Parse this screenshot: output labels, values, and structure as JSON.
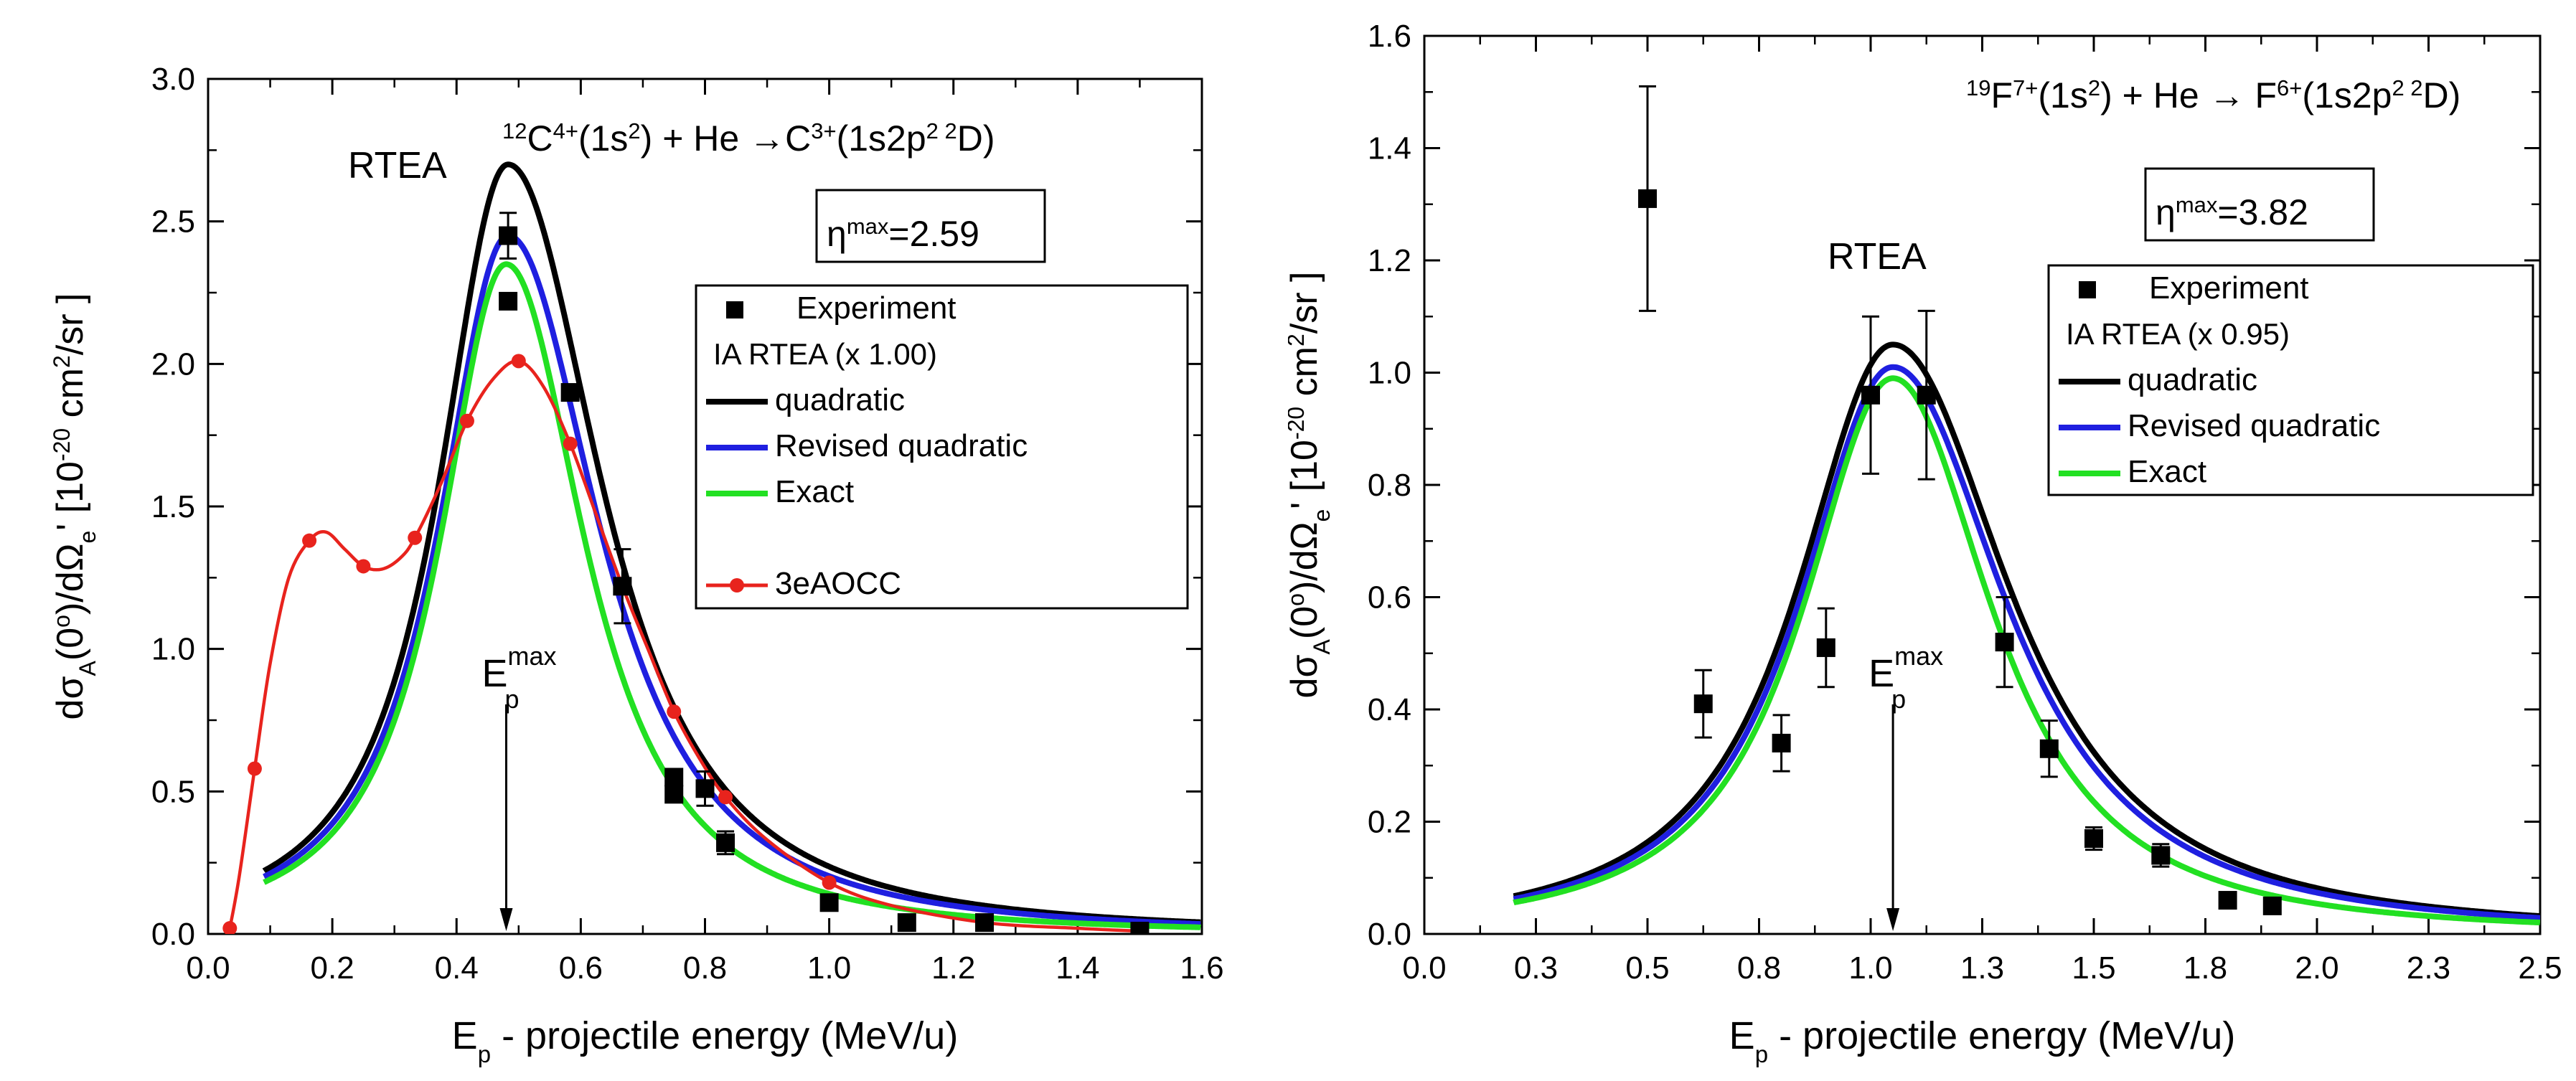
{
  "chart_data": [
    {
      "type": "line",
      "title": "",
      "reaction": {
        "iso": "12",
        "ion": "C",
        "charge": "4+",
        "state": "(1s",
        "state_sup": "2",
        "state_end": ") + He",
        "arrow": "→",
        "product": "C",
        "product_charge": "3+",
        "product_state": "(1s2p",
        "product_sup": "2 2",
        "product_end": "D)"
      },
      "eta_box": {
        "sym": "η",
        "sup": "max",
        "rest": "=2.59"
      },
      "rtea_label": "RTEA",
      "ep_max_label": {
        "base": "E",
        "sub": "p",
        "sup": "max"
      },
      "ep_max_x": 0.48,
      "xlabel": {
        "base": "E",
        "sub": "p",
        "rest": " - projectile energy (MeV/u)"
      },
      "ylabel": {
        "p1": "dσ",
        "s1": "A",
        "p2": "(0",
        "sup1": "o",
        "p3": ")/dΩ",
        "s2": "e",
        "p4": "'  [10",
        "sup2": "-20",
        "p5": " cm",
        "sup3": "2",
        "p6": "/sr ]"
      },
      "xlim": [
        0.0,
        1.6
      ],
      "ylim": [
        0.0,
        3.0
      ],
      "xticks": [
        "0.0",
        "0.2",
        "0.4",
        "0.6",
        "0.8",
        "1.0",
        "1.2",
        "1.4",
        "1.6"
      ],
      "yticks": [
        "0.0",
        "0.5",
        "1.0",
        "1.5",
        "2.0",
        "2.5",
        "3.0"
      ],
      "legend": {
        "position": "right",
        "experiment": "Experiment",
        "ia_header": "IA RTEA  (x 1.00)",
        "quadratic": "quadratic",
        "revised": "Revised quadratic",
        "exact": "Exact",
        "aocc": "3eAOCC"
      },
      "colors": {
        "quadratic": "#000000",
        "revised": "#1f1fe0",
        "exact": "#22e022",
        "aocc": "#e8231d"
      },
      "curve_params": {
        "quadratic": {
          "amp": 2.7,
          "center": 0.483,
          "width_left": 0.14,
          "width_right": 0.19,
          "xmin": 0.09
        },
        "revised": {
          "amp": 2.45,
          "center": 0.483,
          "width_left": 0.14,
          "width_right": 0.185,
          "xmin": 0.09
        },
        "exact": {
          "amp": 2.35,
          "center": 0.48,
          "width_left": 0.135,
          "width_right": 0.16,
          "xmin": 0.09
        }
      },
      "experiment": [
        {
          "x": 0.483,
          "y": 2.45,
          "err": 0.08
        },
        {
          "x": 0.483,
          "y": 2.22,
          "err": 0.0
        },
        {
          "x": 0.583,
          "y": 1.9,
          "err": 0.0
        },
        {
          "x": 0.667,
          "y": 1.22,
          "err": 0.13
        },
        {
          "x": 0.75,
          "y": 0.55,
          "err": 0.0
        },
        {
          "x": 0.75,
          "y": 0.49,
          "err": 0.0
        },
        {
          "x": 0.8,
          "y": 0.51,
          "err": 0.06
        },
        {
          "x": 0.833,
          "y": 0.32,
          "err": 0.04
        },
        {
          "x": 1.0,
          "y": 0.11,
          "err": 0.0
        },
        {
          "x": 1.125,
          "y": 0.04,
          "err": 0.0
        },
        {
          "x": 1.25,
          "y": 0.04,
          "err": 0.0
        },
        {
          "x": 1.5,
          "y": 0.01,
          "err": 0.0
        }
      ],
      "aocc_points": [
        {
          "x": 0.035,
          "y": 0.02
        },
        {
          "x": 0.075,
          "y": 0.58
        },
        {
          "x": 0.163,
          "y": 1.38
        },
        {
          "x": 0.25,
          "y": 1.29
        },
        {
          "x": 0.333,
          "y": 1.39
        },
        {
          "x": 0.417,
          "y": 1.8
        },
        {
          "x": 0.5,
          "y": 2.01
        },
        {
          "x": 0.583,
          "y": 1.72
        },
        {
          "x": 0.667,
          "y": 1.22
        },
        {
          "x": 0.75,
          "y": 0.78
        },
        {
          "x": 0.833,
          "y": 0.48
        },
        {
          "x": 1.0,
          "y": 0.18
        },
        {
          "x": 1.25,
          "y": 0.04
        },
        {
          "x": 1.5,
          "y": 0.01
        }
      ],
      "aocc_curve": [
        [
          0.035,
          0.02
        ],
        [
          0.05,
          0.2
        ],
        [
          0.075,
          0.58
        ],
        [
          0.1,
          0.95
        ],
        [
          0.13,
          1.25
        ],
        [
          0.163,
          1.38
        ],
        [
          0.19,
          1.41
        ],
        [
          0.22,
          1.35
        ],
        [
          0.25,
          1.29
        ],
        [
          0.28,
          1.28
        ],
        [
          0.31,
          1.32
        ],
        [
          0.333,
          1.39
        ],
        [
          0.375,
          1.58
        ],
        [
          0.417,
          1.8
        ],
        [
          0.46,
          1.95
        ],
        [
          0.5,
          2.01
        ],
        [
          0.54,
          1.92
        ],
        [
          0.583,
          1.72
        ],
        [
          0.625,
          1.47
        ],
        [
          0.667,
          1.22
        ],
        [
          0.71,
          0.99
        ],
        [
          0.75,
          0.78
        ],
        [
          0.79,
          0.62
        ],
        [
          0.833,
          0.48
        ],
        [
          0.9,
          0.33
        ],
        [
          1.0,
          0.18
        ],
        [
          1.1,
          0.1
        ],
        [
          1.25,
          0.04
        ],
        [
          1.4,
          0.02
        ],
        [
          1.5,
          0.01
        ]
      ]
    },
    {
      "type": "line",
      "title": "",
      "reaction": {
        "iso": "19",
        "ion": "F",
        "charge": "7+",
        "state": "(1s",
        "state_sup": "2",
        "state_end": ") + He",
        "arrow": "→",
        "product": " F",
        "product_charge": "6+",
        "product_state": "(1s2p",
        "product_sup": "2 2",
        "product_end": "D)"
      },
      "eta_box": {
        "sym": "η",
        "sup": "max",
        "rest": "=3.82"
      },
      "rtea_label": "RTEA",
      "ep_max_label": {
        "base": "E",
        "sub": "p",
        "sup": "max"
      },
      "ep_max_x": 1.05,
      "xlabel": {
        "base": "E",
        "sub": "p",
        "rest": " - projectile energy (MeV/u)"
      },
      "ylabel": {
        "p1": "dσ",
        "s1": "A",
        "p2": "(0",
        "sup1": "o",
        "p3": ")/dΩ",
        "s2": "e",
        "p4": "'  [10",
        "sup2": "-20",
        "p5": " cm",
        "sup3": "2",
        "p6": "/sr ]"
      },
      "xlim": [
        0.0,
        2.5
      ],
      "ylim": [
        0.0,
        1.6
      ],
      "xticks": [
        "0.0",
        "0.3",
        "0.5",
        "0.8",
        "1.0",
        "1.3",
        "1.5",
        "1.8",
        "2.0",
        "2.3",
        "2.5"
      ],
      "xtick_values": [
        0.0,
        0.25,
        0.5,
        0.75,
        1.0,
        1.25,
        1.5,
        1.75,
        2.0,
        2.25,
        2.5
      ],
      "yticks": [
        "0.0",
        "0.2",
        "0.4",
        "0.6",
        "0.8",
        "1.0",
        "1.2",
        "1.4",
        "1.6"
      ],
      "legend": {
        "position": "right",
        "experiment": "Experiment",
        "ia_header": "IA RTEA (x 0.95)",
        "quadratic": "quadratic",
        "revised": "Revised quadratic",
        "exact": "Exact"
      },
      "colors": {
        "quadratic": "#000000",
        "revised": "#1f1fe0",
        "exact": "#22e022"
      },
      "curve_params": {
        "quadratic": {
          "amp": 1.05,
          "center": 1.05,
          "width_left": 0.27,
          "width_right": 0.33,
          "xmin": 0.2
        },
        "revised": {
          "amp": 1.01,
          "center": 1.05,
          "width_left": 0.265,
          "width_right": 0.32,
          "xmin": 0.2
        },
        "exact": {
          "amp": 0.99,
          "center": 1.05,
          "width_left": 0.255,
          "width_right": 0.28,
          "xmin": 0.2
        }
      },
      "experiment": [
        {
          "x": 0.5,
          "y": 1.31,
          "err": 0.2
        },
        {
          "x": 0.625,
          "y": 0.41,
          "err": 0.06
        },
        {
          "x": 0.8,
          "y": 0.34,
          "err": 0.05
        },
        {
          "x": 0.9,
          "y": 0.51,
          "err": 0.07
        },
        {
          "x": 1.0,
          "y": 0.96,
          "err": 0.14
        },
        {
          "x": 1.125,
          "y": 0.96,
          "err": 0.15
        },
        {
          "x": 1.3,
          "y": 0.52,
          "err": 0.08
        },
        {
          "x": 1.4,
          "y": 0.33,
          "err": 0.05
        },
        {
          "x": 1.5,
          "y": 0.17,
          "err": 0.02
        },
        {
          "x": 1.65,
          "y": 0.14,
          "err": 0.02
        },
        {
          "x": 1.8,
          "y": 0.06,
          "err": 0.0
        },
        {
          "x": 1.9,
          "y": 0.05,
          "err": 0.0
        }
      ]
    }
  ]
}
